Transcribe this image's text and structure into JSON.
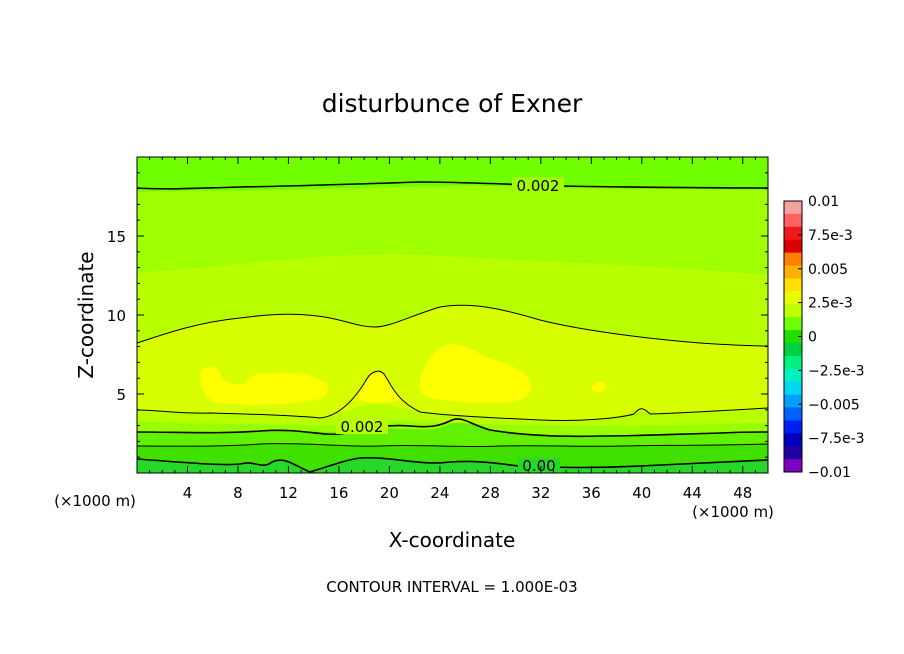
{
  "chart_data": {
    "type": "heatmap",
    "title": "disturbunce of Exner",
    "xlabel": "X-coordinate",
    "ylabel": "Z-coordinate",
    "x_unit": "(×1000 m)",
    "y_unit": "(×1000 m)",
    "xlim": [
      0,
      50
    ],
    "ylim": [
      0,
      20
    ],
    "x_ticks": [
      "4",
      "8",
      "12",
      "16",
      "20",
      "24",
      "28",
      "32",
      "36",
      "40",
      "44",
      "48"
    ],
    "y_ticks": [
      "5",
      "10",
      "15"
    ],
    "footer": "CONTOUR INTERVAL = 1.000E-03",
    "colorbar": {
      "labels": [
        "0.01",
        "7.5e-3",
        "0.005",
        "2.5e-3",
        "0",
        "−2.5e-3",
        "−0.005",
        "−7.5e-3",
        "−0.01"
      ],
      "colors": [
        "#f7a0a0",
        "#ff6060",
        "#f01818",
        "#d80000",
        "#ff8000",
        "#ffb000",
        "#ffe000",
        "#e8ff00",
        "#c0ff00",
        "#70ff00",
        "#20e000",
        "#00d040",
        "#00f080",
        "#00f0c0",
        "#00d8f0",
        "#00a0ff",
        "#0060ff",
        "#0020f0",
        "#0000c0",
        "#2000a0",
        "#8000c0"
      ]
    },
    "contour_labels": [
      "0.002",
      "0.002",
      "0.00"
    ],
    "shading_levels": [
      {
        "name": "yellow",
        "value": 0.004,
        "color": "#ffff00"
      },
      {
        "name": "light-yellow-green",
        "value": 0.0035,
        "color": "#e8ff00"
      },
      {
        "name": "yellow-green",
        "value": 0.003,
        "color": "#c8ff00"
      },
      {
        "name": "yellow-green-2",
        "value": 0.0025,
        "color": "#a0ff00"
      },
      {
        "name": "green",
        "value": 0.002,
        "color": "#78ff00"
      },
      {
        "name": "green-2",
        "value": 0.0015,
        "color": "#50f000"
      },
      {
        "name": "green-3",
        "value": 0.001,
        "color": "#30e000"
      },
      {
        "name": "green-4",
        "value": 0.0005,
        "color": "#20d840"
      }
    ]
  }
}
